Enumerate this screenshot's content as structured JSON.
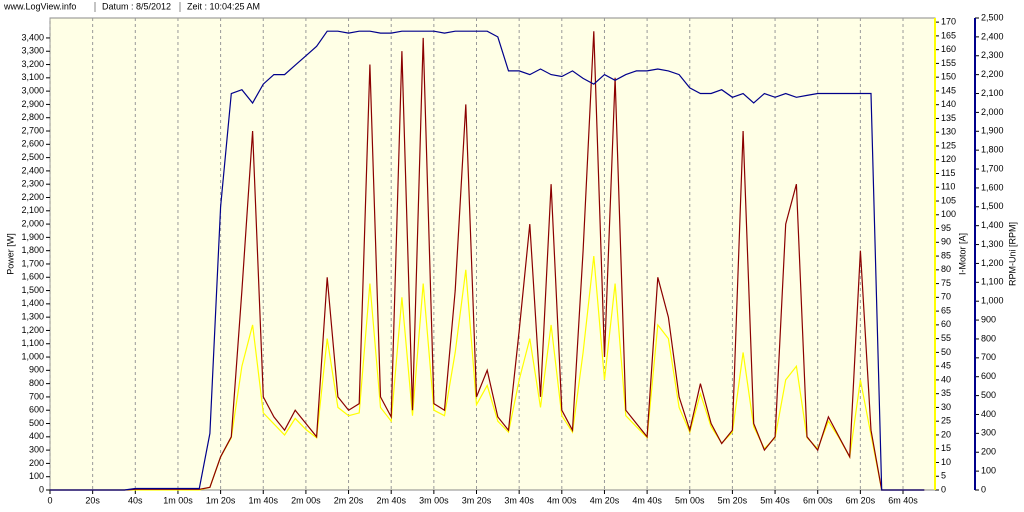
{
  "header": {
    "site": "www.LogView.info",
    "date": "Datum : 8/5/2012",
    "time": "Zeit : 10:04:25 AM"
  },
  "chart_data": {
    "type": "line",
    "ylabel": "Power [W]",
    "y2label": "I-Motor [A]",
    "y3label": "RPM-Uni [RPM]",
    "background": "#ffffe6",
    "grid": "x",
    "x": [
      0,
      5,
      10,
      15,
      20,
      25,
      30,
      35,
      40,
      45,
      50,
      55,
      60,
      65,
      70,
      75,
      80,
      85,
      90,
      95,
      100,
      105,
      110,
      115,
      120,
      125,
      130,
      135,
      140,
      145,
      150,
      155,
      160,
      165,
      170,
      175,
      180,
      185,
      190,
      195,
      200,
      205,
      210,
      215,
      220,
      225,
      230,
      235,
      240,
      245,
      250,
      255,
      260,
      265,
      270,
      275,
      280,
      285,
      290,
      295,
      300,
      305,
      310,
      315,
      320,
      325,
      330,
      335,
      340,
      345,
      350,
      355,
      360,
      365,
      370,
      375,
      380,
      385,
      390,
      395,
      400,
      405,
      410
    ],
    "xlim": [
      0,
      415
    ],
    "xticks": [
      {
        "value": 0,
        "label": "0"
      },
      {
        "value": 20,
        "label": "20s"
      },
      {
        "value": 40,
        "label": "40s"
      },
      {
        "value": 60,
        "label": "1m 00s"
      },
      {
        "value": 80,
        "label": "1m 20s"
      },
      {
        "value": 100,
        "label": "1m 40s"
      },
      {
        "value": 120,
        "label": "2m 00s"
      },
      {
        "value": 140,
        "label": "2m 20s"
      },
      {
        "value": 160,
        "label": "2m 40s"
      },
      {
        "value": 180,
        "label": "3m 00s"
      },
      {
        "value": 200,
        "label": "3m 20s"
      },
      {
        "value": 220,
        "label": "3m 40s"
      },
      {
        "value": 240,
        "label": "4m 00s"
      },
      {
        "value": 260,
        "label": "4m 20s"
      },
      {
        "value": 280,
        "label": "4m 40s"
      },
      {
        "value": 300,
        "label": "5m 00s"
      },
      {
        "value": 320,
        "label": "5m 20s"
      },
      {
        "value": 340,
        "label": "5m 40s"
      },
      {
        "value": 360,
        "label": "6m 00s"
      },
      {
        "value": 380,
        "label": "6m 20s"
      },
      {
        "value": 400,
        "label": "6m 40s"
      }
    ],
    "ylim": [
      0,
      3550
    ],
    "yticks": [
      0,
      100,
      200,
      300,
      400,
      500,
      600,
      700,
      800,
      900,
      {
        "value": 1000,
        "label": "1,000"
      },
      {
        "value": 1100,
        "label": "1,100"
      },
      {
        "value": 1200,
        "label": "1,200"
      },
      {
        "value": 1300,
        "label": "1,300"
      },
      {
        "value": 1400,
        "label": "1,400"
      },
      {
        "value": 1500,
        "label": "1,500"
      },
      {
        "value": 1600,
        "label": "1,600"
      },
      {
        "value": 1700,
        "label": "1,700"
      },
      {
        "value": 1800,
        "label": "1,800"
      },
      {
        "value": 1900,
        "label": "1,900"
      },
      {
        "value": 2000,
        "label": "2,000"
      },
      {
        "value": 2100,
        "label": "2,100"
      },
      {
        "value": 2200,
        "label": "2,200"
      },
      {
        "value": 2300,
        "label": "2,300"
      },
      {
        "value": 2400,
        "label": "2,400"
      },
      {
        "value": 2500,
        "label": "2,500"
      },
      {
        "value": 2600,
        "label": "2,600"
      },
      {
        "value": 2700,
        "label": "2,700"
      },
      {
        "value": 2800,
        "label": "2,800"
      },
      {
        "value": 2900,
        "label": "2,900"
      },
      {
        "value": 3000,
        "label": "3,000"
      },
      {
        "value": 3100,
        "label": "3,100"
      },
      {
        "value": 3200,
        "label": "3,200"
      },
      {
        "value": 3300,
        "label": "3,300"
      },
      {
        "value": 3400,
        "label": "3,400"
      }
    ],
    "y2lim": [
      0,
      171.5
    ],
    "y2ticks": [
      0,
      5,
      10,
      15,
      20,
      25,
      30,
      35,
      40,
      45,
      50,
      55,
      60,
      65,
      70,
      75,
      80,
      85,
      90,
      95,
      100,
      105,
      110,
      115,
      120,
      125,
      130,
      135,
      140,
      145,
      150,
      155,
      160,
      165,
      170
    ],
    "y3lim": [
      0,
      2500
    ],
    "y3ticks": [
      0,
      100,
      200,
      300,
      400,
      500,
      600,
      700,
      800,
      900,
      {
        "value": 1000,
        "label": "1,000"
      },
      {
        "value": 1100,
        "label": "1,100"
      },
      {
        "value": 1200,
        "label": "1,200"
      },
      {
        "value": 1300,
        "label": "1,300"
      },
      {
        "value": 1400,
        "label": "1,400"
      },
      {
        "value": 1500,
        "label": "1,500"
      },
      {
        "value": 1600,
        "label": "1,600"
      },
      {
        "value": 1700,
        "label": "1,700"
      },
      {
        "value": 1800,
        "label": "1,800"
      },
      {
        "value": 1900,
        "label": "1,900"
      },
      {
        "value": 2000,
        "label": "2,000"
      },
      {
        "value": 2100,
        "label": "2,100"
      },
      {
        "value": 2200,
        "label": "2,200"
      },
      {
        "value": 2300,
        "label": "2,300"
      },
      {
        "value": 2400,
        "label": "2,400"
      },
      {
        "value": 2500,
        "label": "2,500"
      }
    ],
    "series": [
      {
        "color": "#ffff00",
        "axis": "y2",
        "values": [
          0,
          0,
          0,
          0,
          0,
          0,
          0,
          0,
          0,
          0,
          0,
          0,
          0,
          0,
          0,
          1,
          12,
          19,
          45,
          60,
          28,
          24,
          20,
          26,
          22,
          19,
          55,
          30,
          27,
          28,
          75,
          30,
          25,
          70,
          27,
          75,
          29,
          27,
          50,
          80,
          31,
          38,
          25,
          21,
          40,
          55,
          30,
          60,
          27,
          21,
          50,
          85,
          40,
          75,
          27,
          23,
          19,
          60,
          55,
          30,
          21,
          35,
          23,
          17,
          21,
          50,
          23,
          15,
          19,
          40,
          45,
          19,
          15,
          25,
          19,
          12,
          40,
          20,
          0,
          0,
          0,
          0,
          0
        ]
      },
      {
        "color": "#8b0000",
        "axis": "y",
        "values": [
          0,
          0,
          0,
          0,
          0,
          0,
          0,
          0,
          5,
          5,
          5,
          5,
          5,
          5,
          5,
          20,
          250,
          400,
          1500,
          2700,
          700,
          550,
          450,
          600,
          500,
          400,
          1600,
          700,
          600,
          650,
          3200,
          700,
          550,
          3300,
          600,
          3400,
          650,
          600,
          1500,
          2900,
          700,
          900,
          550,
          450,
          1200,
          2000,
          700,
          2300,
          600,
          450,
          1800,
          3450,
          1000,
          3100,
          600,
          500,
          400,
          1600,
          1300,
          700,
          450,
          800,
          500,
          350,
          450,
          2700,
          500,
          300,
          400,
          2000,
          2300,
          400,
          300,
          550,
          400,
          250,
          1800,
          450,
          0,
          0,
          0,
          0,
          0
        ]
      },
      {
        "color": "#00008b",
        "axis": "y3",
        "values": [
          0,
          0,
          0,
          0,
          0,
          0,
          0,
          0,
          8,
          8,
          8,
          8,
          8,
          8,
          8,
          300,
          1500,
          2100,
          2120,
          2050,
          2150,
          2200,
          2200,
          2250,
          2300,
          2350,
          2430,
          2430,
          2420,
          2430,
          2430,
          2420,
          2420,
          2430,
          2430,
          2430,
          2430,
          2420,
          2430,
          2430,
          2430,
          2430,
          2400,
          2220,
          2220,
          2200,
          2230,
          2200,
          2190,
          2220,
          2180,
          2150,
          2200,
          2170,
          2200,
          2220,
          2220,
          2230,
          2220,
          2200,
          2130,
          2100,
          2100,
          2120,
          2080,
          2100,
          2050,
          2100,
          2080,
          2100,
          2080,
          2090,
          2100,
          2100,
          2100,
          2100,
          2100,
          2100,
          0,
          0,
          0,
          0,
          0
        ]
      }
    ]
  }
}
